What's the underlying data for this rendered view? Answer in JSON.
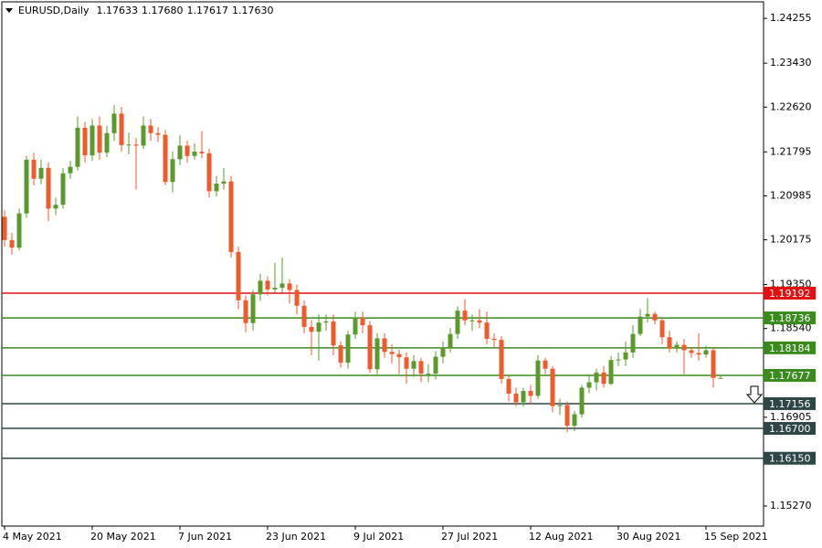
{
  "header": {
    "symbol": "EURUSD,Daily",
    "ohlc": [
      "1.17633",
      "1.17680",
      "1.17617",
      "1.17630"
    ]
  },
  "chart_data": {
    "type": "candlestick",
    "categories": [
      "4 May 2021",
      null,
      null,
      null,
      null,
      null,
      null,
      null,
      null,
      null,
      null,
      null,
      "20 May 2021",
      null,
      null,
      null,
      null,
      null,
      null,
      null,
      null,
      null,
      null,
      null,
      "7 Jun 2021",
      null,
      null,
      null,
      null,
      null,
      null,
      null,
      null,
      null,
      null,
      null,
      "23 Jun 2021",
      null,
      null,
      null,
      null,
      null,
      null,
      null,
      null,
      null,
      null,
      null,
      "9 Jul 2021",
      null,
      null,
      null,
      null,
      null,
      null,
      null,
      null,
      null,
      null,
      null,
      "27 Jul 2021",
      null,
      null,
      null,
      null,
      null,
      null,
      null,
      null,
      null,
      null,
      null,
      "12 Aug 2021",
      null,
      null,
      null,
      null,
      null,
      null,
      null,
      null,
      null,
      null,
      null,
      "30 Aug 2021",
      null,
      null,
      null,
      null,
      null,
      null,
      null,
      null,
      null,
      null,
      null,
      "15 Sep 2021",
      null,
      null
    ],
    "open": [
      1.206,
      1.2017,
      1.2003,
      1.2066,
      1.2165,
      1.213,
      1.215,
      1.2075,
      1.2082,
      1.214,
      1.2152,
      1.2224,
      1.2173,
      1.2228,
      1.2178,
      1.2214,
      1.225,
      1.2192,
      1.2193,
      1.2191,
      1.2228,
      1.2214,
      1.2211,
      1.2124,
      1.2166,
      1.2191,
      1.2172,
      1.218,
      1.2177,
      1.2107,
      1.2121,
      1.2125,
      1.1995,
      1.1906,
      1.1864,
      1.1917,
      1.1942,
      1.1926,
      1.1929,
      1.1937,
      1.1925,
      1.1896,
      1.1857,
      1.1848,
      1.1865,
      1.1867,
      1.1823,
      1.1791,
      1.1843,
      1.1874,
      1.186,
      1.1779,
      1.1836,
      1.1811,
      1.1807,
      1.1801,
      1.178,
      1.1794,
      1.1771,
      1.1771,
      1.1802,
      1.1819,
      1.1844,
      1.1887,
      1.1869,
      1.1869,
      1.1865,
      1.1835,
      1.1833,
      1.1761,
      1.1734,
      1.1718,
      1.1739,
      1.173,
      1.1795,
      1.178,
      1.1711,
      1.1713,
      1.1675,
      1.1696,
      1.1745,
      1.1755,
      1.1773,
      1.1752,
      1.1796,
      1.1797,
      1.181,
      1.1844,
      1.1876,
      1.1881,
      1.1869,
      1.1838,
      1.1817,
      1.1824,
      1.1814,
      1.1809,
      1.1806,
      1.1814,
      1.1763
    ],
    "high": [
      1.2072,
      1.203,
      1.2075,
      1.2172,
      1.2178,
      1.2165,
      1.216,
      1.2095,
      1.215,
      1.2163,
      1.2245,
      1.2235,
      1.224,
      1.2245,
      1.2228,
      1.2266,
      1.2262,
      1.2215,
      1.2205,
      1.2245,
      1.224,
      1.2225,
      1.222,
      1.218,
      1.221,
      1.22,
      1.2195,
      1.2218,
      1.2185,
      1.2135,
      1.215,
      1.2135,
      1.2005,
      1.1915,
      1.1925,
      1.1955,
      1.195,
      1.1975,
      1.1985,
      1.1945,
      1.1935,
      1.1905,
      1.187,
      1.188,
      1.188,
      1.188,
      1.183,
      1.185,
      1.1885,
      1.1885,
      1.1868,
      1.1845,
      1.1845,
      1.1825,
      1.1815,
      1.181,
      1.1805,
      1.18,
      1.1788,
      1.1812,
      1.183,
      1.1855,
      1.1895,
      1.1908,
      1.188,
      1.189,
      1.1885,
      1.1845,
      1.184,
      1.1768,
      1.1745,
      1.1745,
      1.175,
      1.1805,
      1.18,
      1.1785,
      1.1725,
      1.172,
      1.1702,
      1.175,
      1.177,
      1.178,
      1.1785,
      1.1803,
      1.181,
      1.183,
      1.186,
      1.189,
      1.191,
      1.1885,
      1.1875,
      1.185,
      1.183,
      1.1835,
      1.182,
      1.1845,
      1.1822,
      1.182,
      1.1768
    ],
    "low": [
      1.2005,
      1.199,
      1.1998,
      1.2058,
      1.2118,
      1.212,
      1.2052,
      1.2063,
      1.2075,
      1.213,
      1.2145,
      1.216,
      1.2163,
      1.2165,
      1.217,
      1.22,
      1.218,
      1.2175,
      1.211,
      1.2185,
      1.22,
      1.2198,
      1.2118,
      1.2105,
      1.2155,
      1.216,
      1.2165,
      1.2168,
      1.2095,
      1.2098,
      1.211,
      1.1985,
      1.189,
      1.1847,
      1.185,
      1.1905,
      1.1915,
      1.192,
      1.192,
      1.19,
      1.188,
      1.1845,
      1.1805,
      1.1795,
      1.185,
      1.1805,
      1.1782,
      1.178,
      1.1835,
      1.1845,
      1.1772,
      1.177,
      1.18,
      1.179,
      1.177,
      1.1752,
      1.1765,
      1.1755,
      1.1755,
      1.176,
      1.179,
      1.181,
      1.1835,
      1.186,
      1.185,
      1.1855,
      1.1825,
      1.182,
      1.1752,
      1.172,
      1.171,
      1.171,
      1.1715,
      1.1725,
      1.177,
      1.17,
      1.1695,
      1.1663,
      1.1665,
      1.169,
      1.1735,
      1.174,
      1.1745,
      1.175,
      1.1785,
      1.1785,
      1.18,
      1.184,
      1.1865,
      1.1862,
      1.1825,
      1.181,
      1.181,
      1.177,
      1.18,
      1.1795,
      1.18,
      1.1745,
      1.1762
    ],
    "close": [
      1.2017,
      1.2003,
      1.2066,
      1.2165,
      1.213,
      1.215,
      1.2075,
      1.2082,
      1.214,
      1.2152,
      1.2224,
      1.2173,
      1.2228,
      1.2178,
      1.2214,
      1.225,
      1.2192,
      1.2193,
      1.2191,
      1.2228,
      1.2214,
      1.2211,
      1.2124,
      1.2166,
      1.2191,
      1.2172,
      1.218,
      1.2177,
      1.2107,
      1.2121,
      1.2125,
      1.1995,
      1.1906,
      1.1864,
      1.1917,
      1.1942,
      1.1926,
      1.1929,
      1.1937,
      1.1925,
      1.1896,
      1.1857,
      1.1848,
      1.1865,
      1.1867,
      1.1823,
      1.1791,
      1.1843,
      1.1874,
      1.186,
      1.1779,
      1.1836,
      1.1811,
      1.1807,
      1.1801,
      1.178,
      1.1794,
      1.1771,
      1.1771,
      1.1802,
      1.1819,
      1.1844,
      1.1887,
      1.1869,
      1.1869,
      1.1865,
      1.1835,
      1.1833,
      1.1761,
      1.1734,
      1.1718,
      1.1739,
      1.173,
      1.1795,
      1.178,
      1.1711,
      1.1713,
      1.1675,
      1.1696,
      1.1745,
      1.1755,
      1.1773,
      1.1752,
      1.1796,
      1.1797,
      1.181,
      1.1844,
      1.1876,
      1.1881,
      1.1869,
      1.1838,
      1.1817,
      1.1824,
      1.1814,
      1.1809,
      1.1806,
      1.1814,
      1.1763,
      1.1763
    ],
    "up_color": "#5a9a2c",
    "down_color": "#f05a2c",
    "ylim": [
      1.149,
      1.2456
    ],
    "yticks": [
      1.24255,
      {
        "value": 1.2343,
        "label": "1.23430"
      },
      {
        "value": 1.2262,
        "label": "1.22620"
      },
      1.21795,
      1.20985,
      1.20175,
      {
        "value": 1.1935,
        "label": "1.19350"
      },
      {
        "value": 1.1854,
        "label": "1.18540"
      },
      1.16905,
      {
        "value": 1.1527,
        "label": "1.15270"
      }
    ],
    "levels": [
      {
        "value": 1.19192,
        "color": "#e01010"
      },
      {
        "value": 1.18736,
        "color": "#3a8a1e"
      },
      {
        "value": 1.18184,
        "color": "#3a8a1e"
      },
      {
        "value": 1.17677,
        "color": "#3a8a1e"
      },
      {
        "value": 1.17156,
        "color": "#2f4646"
      },
      {
        "value": 1.167,
        "label": "1.16700",
        "color": "#2f4646"
      },
      {
        "value": 1.1615,
        "label": "1.16150",
        "color": "#2f4646"
      }
    ]
  }
}
